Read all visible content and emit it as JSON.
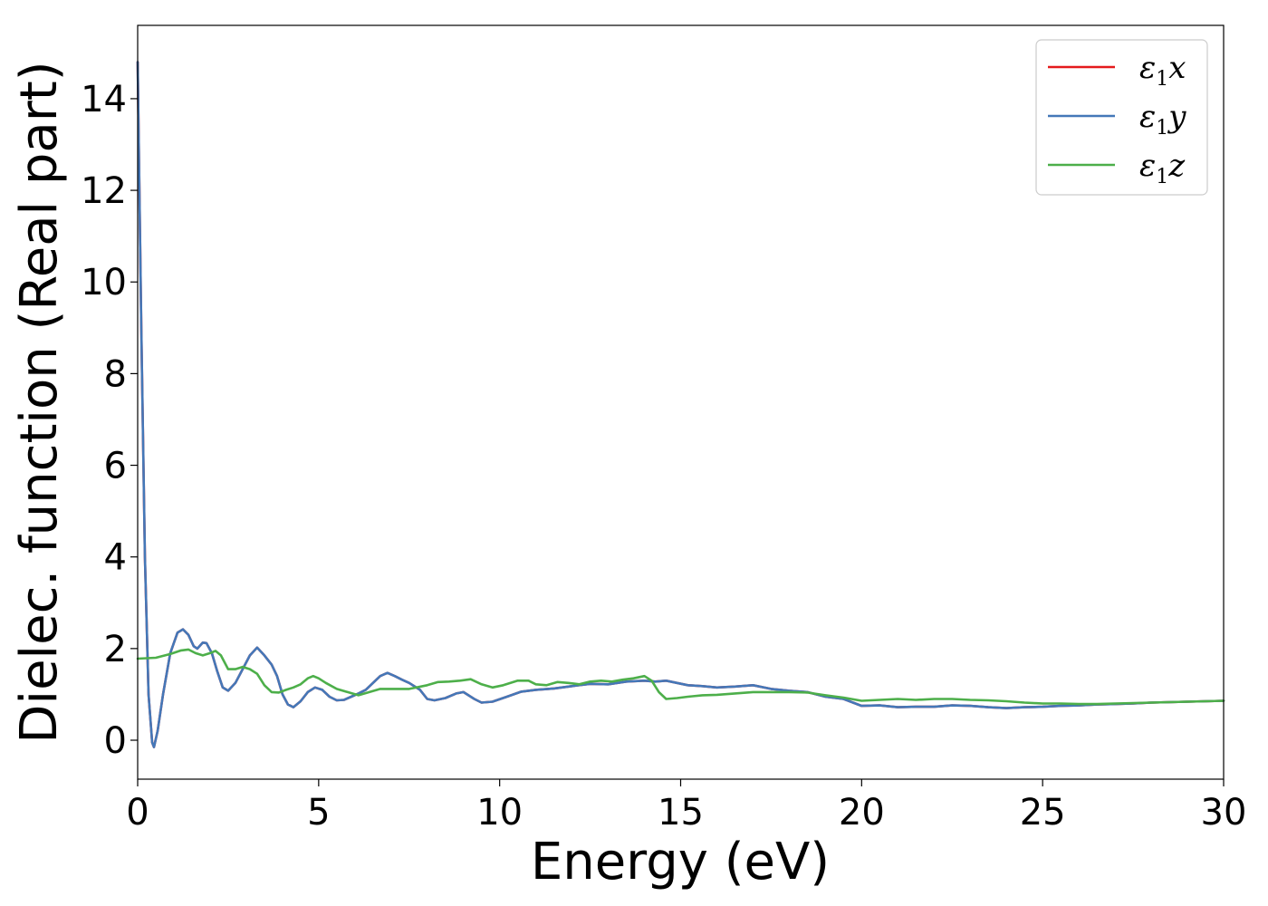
{
  "chart_data": {
    "type": "line",
    "xlabel": "Energy (eV)",
    "ylabel": "Dielec. function (Real part)",
    "xlim": [
      0,
      30
    ],
    "ylim": [
      -0.85,
      15.6
    ],
    "x_ticks": [
      0,
      5,
      10,
      15,
      20,
      25,
      30
    ],
    "y_ticks": [
      0,
      2,
      4,
      6,
      8,
      10,
      12,
      14
    ],
    "grid": false,
    "legend_position": "top-right",
    "series": [
      {
        "name": "ε1x",
        "label_main": "ε",
        "label_sub": "1",
        "label_var": "x",
        "color": "#e41a1c",
        "points": [
          [
            0.0,
            14.8
          ],
          [
            0.1,
            9.0
          ],
          [
            0.2,
            4.0
          ],
          [
            0.3,
            1.0
          ],
          [
            0.4,
            -0.05
          ],
          [
            0.45,
            -0.15
          ],
          [
            0.55,
            0.2
          ],
          [
            0.7,
            1.0
          ],
          [
            0.9,
            1.9
          ],
          [
            1.1,
            2.35
          ],
          [
            1.25,
            2.42
          ],
          [
            1.4,
            2.3
          ],
          [
            1.55,
            2.05
          ],
          [
            1.65,
            2.0
          ],
          [
            1.8,
            2.13
          ],
          [
            1.9,
            2.12
          ],
          [
            2.05,
            1.9
          ],
          [
            2.2,
            1.5
          ],
          [
            2.35,
            1.15
          ],
          [
            2.5,
            1.08
          ],
          [
            2.7,
            1.25
          ],
          [
            2.9,
            1.55
          ],
          [
            3.1,
            1.85
          ],
          [
            3.3,
            2.02
          ],
          [
            3.5,
            1.85
          ],
          [
            3.7,
            1.65
          ],
          [
            3.85,
            1.4
          ],
          [
            4.0,
            1.0
          ],
          [
            4.15,
            0.78
          ],
          [
            4.3,
            0.72
          ],
          [
            4.5,
            0.85
          ],
          [
            4.7,
            1.05
          ],
          [
            4.9,
            1.15
          ],
          [
            5.1,
            1.1
          ],
          [
            5.3,
            0.95
          ],
          [
            5.5,
            0.87
          ],
          [
            5.7,
            0.88
          ],
          [
            5.9,
            0.95
          ],
          [
            6.1,
            1.02
          ],
          [
            6.3,
            1.1
          ],
          [
            6.5,
            1.25
          ],
          [
            6.7,
            1.4
          ],
          [
            6.9,
            1.47
          ],
          [
            7.1,
            1.4
          ],
          [
            7.3,
            1.32
          ],
          [
            7.5,
            1.25
          ],
          [
            7.8,
            1.1
          ],
          [
            8.0,
            0.9
          ],
          [
            8.2,
            0.87
          ],
          [
            8.5,
            0.92
          ],
          [
            8.8,
            1.02
          ],
          [
            9.0,
            1.05
          ],
          [
            9.3,
            0.9
          ],
          [
            9.5,
            0.82
          ],
          [
            9.8,
            0.84
          ],
          [
            10.2,
            0.95
          ],
          [
            10.6,
            1.06
          ],
          [
            11.0,
            1.1
          ],
          [
            11.5,
            1.13
          ],
          [
            12.0,
            1.18
          ],
          [
            12.5,
            1.23
          ],
          [
            13.0,
            1.22
          ],
          [
            13.5,
            1.28
          ],
          [
            14.0,
            1.3
          ],
          [
            14.3,
            1.28
          ],
          [
            14.6,
            1.3
          ],
          [
            14.9,
            1.25
          ],
          [
            15.2,
            1.2
          ],
          [
            15.6,
            1.18
          ],
          [
            16.0,
            1.15
          ],
          [
            16.5,
            1.17
          ],
          [
            17.0,
            1.2
          ],
          [
            17.5,
            1.12
          ],
          [
            18.0,
            1.08
          ],
          [
            18.5,
            1.05
          ],
          [
            19.0,
            0.95
          ],
          [
            19.5,
            0.9
          ],
          [
            20.0,
            0.75
          ],
          [
            20.5,
            0.76
          ],
          [
            21.0,
            0.72
          ],
          [
            21.5,
            0.73
          ],
          [
            22.0,
            0.73
          ],
          [
            22.5,
            0.76
          ],
          [
            23.0,
            0.75
          ],
          [
            23.5,
            0.72
          ],
          [
            24.0,
            0.7
          ],
          [
            24.5,
            0.72
          ],
          [
            25.0,
            0.73
          ],
          [
            25.5,
            0.75
          ],
          [
            26.0,
            0.76
          ],
          [
            26.5,
            0.78
          ],
          [
            27.0,
            0.79
          ],
          [
            27.5,
            0.8
          ],
          [
            28.0,
            0.82
          ],
          [
            28.5,
            0.83
          ],
          [
            29.0,
            0.84
          ],
          [
            29.5,
            0.85
          ],
          [
            30.0,
            0.86
          ]
        ]
      },
      {
        "name": "ε1y",
        "label_main": "ε",
        "label_sub": "1",
        "label_var": "y",
        "color": "#4478b8",
        "points": [
          [
            0.0,
            14.8
          ],
          [
            0.1,
            9.0
          ],
          [
            0.2,
            4.0
          ],
          [
            0.3,
            1.0
          ],
          [
            0.4,
            -0.05
          ],
          [
            0.45,
            -0.15
          ],
          [
            0.55,
            0.2
          ],
          [
            0.7,
            1.0
          ],
          [
            0.9,
            1.9
          ],
          [
            1.1,
            2.35
          ],
          [
            1.25,
            2.42
          ],
          [
            1.4,
            2.3
          ],
          [
            1.55,
            2.05
          ],
          [
            1.65,
            2.0
          ],
          [
            1.8,
            2.13
          ],
          [
            1.9,
            2.12
          ],
          [
            2.05,
            1.9
          ],
          [
            2.2,
            1.5
          ],
          [
            2.35,
            1.15
          ],
          [
            2.5,
            1.08
          ],
          [
            2.7,
            1.25
          ],
          [
            2.9,
            1.55
          ],
          [
            3.1,
            1.85
          ],
          [
            3.3,
            2.02
          ],
          [
            3.5,
            1.85
          ],
          [
            3.7,
            1.65
          ],
          [
            3.85,
            1.4
          ],
          [
            4.0,
            1.0
          ],
          [
            4.15,
            0.78
          ],
          [
            4.3,
            0.72
          ],
          [
            4.5,
            0.85
          ],
          [
            4.7,
            1.05
          ],
          [
            4.9,
            1.15
          ],
          [
            5.1,
            1.1
          ],
          [
            5.3,
            0.95
          ],
          [
            5.5,
            0.87
          ],
          [
            5.7,
            0.88
          ],
          [
            5.9,
            0.95
          ],
          [
            6.1,
            1.02
          ],
          [
            6.3,
            1.1
          ],
          [
            6.5,
            1.25
          ],
          [
            6.7,
            1.4
          ],
          [
            6.9,
            1.47
          ],
          [
            7.1,
            1.4
          ],
          [
            7.3,
            1.32
          ],
          [
            7.5,
            1.25
          ],
          [
            7.8,
            1.1
          ],
          [
            8.0,
            0.9
          ],
          [
            8.2,
            0.87
          ],
          [
            8.5,
            0.92
          ],
          [
            8.8,
            1.02
          ],
          [
            9.0,
            1.05
          ],
          [
            9.3,
            0.9
          ],
          [
            9.5,
            0.82
          ],
          [
            9.8,
            0.84
          ],
          [
            10.2,
            0.95
          ],
          [
            10.6,
            1.06
          ],
          [
            11.0,
            1.1
          ],
          [
            11.5,
            1.13
          ],
          [
            12.0,
            1.18
          ],
          [
            12.5,
            1.23
          ],
          [
            13.0,
            1.22
          ],
          [
            13.5,
            1.28
          ],
          [
            14.0,
            1.3
          ],
          [
            14.3,
            1.28
          ],
          [
            14.6,
            1.3
          ],
          [
            14.9,
            1.25
          ],
          [
            15.2,
            1.2
          ],
          [
            15.6,
            1.18
          ],
          [
            16.0,
            1.15
          ],
          [
            16.5,
            1.17
          ],
          [
            17.0,
            1.2
          ],
          [
            17.5,
            1.12
          ],
          [
            18.0,
            1.08
          ],
          [
            18.5,
            1.05
          ],
          [
            19.0,
            0.95
          ],
          [
            19.5,
            0.9
          ],
          [
            20.0,
            0.75
          ],
          [
            20.5,
            0.76
          ],
          [
            21.0,
            0.72
          ],
          [
            21.5,
            0.73
          ],
          [
            22.0,
            0.73
          ],
          [
            22.5,
            0.76
          ],
          [
            23.0,
            0.75
          ],
          [
            23.5,
            0.72
          ],
          [
            24.0,
            0.7
          ],
          [
            24.5,
            0.72
          ],
          [
            25.0,
            0.73
          ],
          [
            25.5,
            0.75
          ],
          [
            26.0,
            0.76
          ],
          [
            26.5,
            0.78
          ],
          [
            27.0,
            0.79
          ],
          [
            27.5,
            0.8
          ],
          [
            28.0,
            0.82
          ],
          [
            28.5,
            0.83
          ],
          [
            29.0,
            0.84
          ],
          [
            29.5,
            0.85
          ],
          [
            30.0,
            0.86
          ]
        ]
      },
      {
        "name": "ε1z",
        "label_main": "ε",
        "label_sub": "1",
        "label_var": "z",
        "color": "#4daf4a",
        "points": [
          [
            0.0,
            1.78
          ],
          [
            0.5,
            1.8
          ],
          [
            0.9,
            1.88
          ],
          [
            1.2,
            1.96
          ],
          [
            1.4,
            1.98
          ],
          [
            1.6,
            1.9
          ],
          [
            1.8,
            1.85
          ],
          [
            2.0,
            1.9
          ],
          [
            2.15,
            1.95
          ],
          [
            2.3,
            1.85
          ],
          [
            2.5,
            1.55
          ],
          [
            2.7,
            1.55
          ],
          [
            2.9,
            1.6
          ],
          [
            3.1,
            1.55
          ],
          [
            3.3,
            1.45
          ],
          [
            3.5,
            1.2
          ],
          [
            3.7,
            1.05
          ],
          [
            3.9,
            1.04
          ],
          [
            4.1,
            1.1
          ],
          [
            4.3,
            1.15
          ],
          [
            4.5,
            1.22
          ],
          [
            4.7,
            1.35
          ],
          [
            4.85,
            1.4
          ],
          [
            5.0,
            1.35
          ],
          [
            5.2,
            1.25
          ],
          [
            5.5,
            1.12
          ],
          [
            5.8,
            1.05
          ],
          [
            6.1,
            0.98
          ],
          [
            6.4,
            1.05
          ],
          [
            6.7,
            1.12
          ],
          [
            7.0,
            1.12
          ],
          [
            7.5,
            1.12
          ],
          [
            8.0,
            1.2
          ],
          [
            8.3,
            1.27
          ],
          [
            8.6,
            1.28
          ],
          [
            8.9,
            1.3
          ],
          [
            9.2,
            1.33
          ],
          [
            9.5,
            1.22
          ],
          [
            9.8,
            1.15
          ],
          [
            10.1,
            1.2
          ],
          [
            10.5,
            1.3
          ],
          [
            10.8,
            1.3
          ],
          [
            11.0,
            1.22
          ],
          [
            11.3,
            1.2
          ],
          [
            11.6,
            1.27
          ],
          [
            11.9,
            1.25
          ],
          [
            12.2,
            1.22
          ],
          [
            12.5,
            1.28
          ],
          [
            12.8,
            1.3
          ],
          [
            13.1,
            1.28
          ],
          [
            13.4,
            1.32
          ],
          [
            13.7,
            1.35
          ],
          [
            14.0,
            1.4
          ],
          [
            14.2,
            1.3
          ],
          [
            14.4,
            1.05
          ],
          [
            14.6,
            0.9
          ],
          [
            14.9,
            0.92
          ],
          [
            15.2,
            0.95
          ],
          [
            15.6,
            0.98
          ],
          [
            16.0,
            0.99
          ],
          [
            16.5,
            1.02
          ],
          [
            17.0,
            1.05
          ],
          [
            17.5,
            1.05
          ],
          [
            18.0,
            1.05
          ],
          [
            18.5,
            1.04
          ],
          [
            19.0,
            0.98
          ],
          [
            19.5,
            0.93
          ],
          [
            20.0,
            0.86
          ],
          [
            20.5,
            0.88
          ],
          [
            21.0,
            0.9
          ],
          [
            21.5,
            0.88
          ],
          [
            22.0,
            0.9
          ],
          [
            22.5,
            0.9
          ],
          [
            23.0,
            0.88
          ],
          [
            23.5,
            0.87
          ],
          [
            24.0,
            0.85
          ],
          [
            24.5,
            0.82
          ],
          [
            25.0,
            0.8
          ],
          [
            25.5,
            0.8
          ],
          [
            26.0,
            0.79
          ],
          [
            26.5,
            0.79
          ],
          [
            27.0,
            0.8
          ],
          [
            27.5,
            0.81
          ],
          [
            28.0,
            0.82
          ],
          [
            28.5,
            0.83
          ],
          [
            29.0,
            0.84
          ],
          [
            29.5,
            0.85
          ],
          [
            30.0,
            0.86
          ]
        ]
      }
    ]
  }
}
